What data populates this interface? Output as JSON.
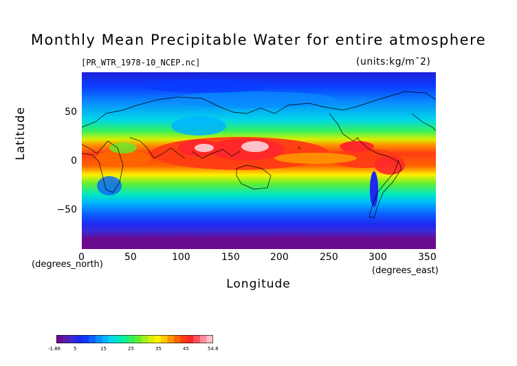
{
  "title": "Monthly Mean Precipitable Water for entire atmosphere",
  "file_label": "[PR_WTR_1978-10_NCEP.nc]",
  "units_label": "(units:kg/m¯2)",
  "axes": {
    "xlabel": "Longitude",
    "ylabel": "Latitude",
    "x_units": "(degrees_east)",
    "y_units": "(degrees_north)",
    "x_ticks": [
      "0",
      "50",
      "100",
      "150",
      "200",
      "250",
      "300",
      "350"
    ],
    "y_ticks": [
      "50",
      "0",
      "−50"
    ]
  },
  "map": {
    "projection": "equirectangular",
    "xlim": [
      0,
      360
    ],
    "ylim": [
      -90,
      90
    ],
    "coastlines": true
  },
  "colorbar": {
    "min": -1.86,
    "max": 54.8,
    "labels": [
      "-1.86",
      "5",
      "15",
      "25",
      "35",
      "45",
      "54.8"
    ],
    "colors": [
      "#6a0a8f",
      "#5a1cb0",
      "#3a2ad6",
      "#1e28f0",
      "#0a3cff",
      "#0c62ff",
      "#0a8cff",
      "#00b4ff",
      "#00d8e8",
      "#00e8c0",
      "#10f090",
      "#30f060",
      "#60f030",
      "#a0f020",
      "#d8f000",
      "#fff000",
      "#ffc800",
      "#ff9600",
      "#ff6400",
      "#ff3c14",
      "#ff2828",
      "#ff5060",
      "#ff8c9c",
      "#ffc0c8"
    ]
  }
}
